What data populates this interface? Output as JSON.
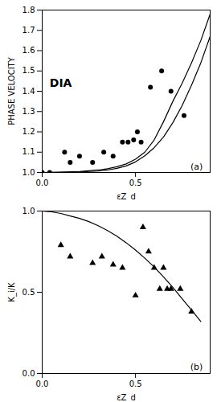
{
  "chart_data": [
    {
      "type": "line",
      "xlabel": "εZ_d",
      "ylabel": "PHASE VELOCITY",
      "xlim": [
        0,
        0.9
      ],
      "ylim": [
        1.0,
        1.8
      ],
      "xticks": [
        {
          "value": 0,
          "label": "0.0"
        },
        0.5
      ],
      "yticks": [
        {
          "value": 1.0,
          "label": "1.0"
        },
        1.1,
        1.2,
        1.3,
        1.4,
        1.5,
        1.6,
        1.7,
        1.8
      ],
      "series": [
        {
          "type": "line",
          "color": "black",
          "x": [
            0.0,
            0.1,
            0.2,
            0.3,
            0.35,
            0.4,
            0.45,
            0.5,
            0.55,
            0.6,
            0.65,
            0.7,
            0.75,
            0.8,
            0.85,
            0.9
          ],
          "values": [
            1.0,
            1.002,
            1.005,
            1.012,
            1.018,
            1.028,
            1.042,
            1.065,
            1.1,
            1.16,
            1.25,
            1.35,
            1.44,
            1.54,
            1.65,
            1.78
          ]
        },
        {
          "type": "line",
          "color": "black",
          "x": [
            0.0,
            0.1,
            0.2,
            0.3,
            0.35,
            0.4,
            0.45,
            0.5,
            0.55,
            0.6,
            0.65,
            0.7,
            0.75,
            0.8,
            0.85,
            0.9
          ],
          "values": [
            1.0,
            1.001,
            1.003,
            1.007,
            1.012,
            1.02,
            1.032,
            1.052,
            1.082,
            1.122,
            1.175,
            1.245,
            1.33,
            1.43,
            1.54,
            1.67
          ]
        },
        {
          "type": "scatter",
          "color": "black",
          "marker": "circle",
          "x": [
            0.0,
            0.04,
            0.12,
            0.15,
            0.2,
            0.27,
            0.33,
            0.38,
            0.43,
            0.46,
            0.49,
            0.51,
            0.53,
            0.58,
            0.64,
            0.69,
            0.76
          ],
          "values": [
            1.0,
            1.0,
            1.1,
            1.05,
            1.08,
            1.05,
            1.1,
            1.08,
            1.15,
            1.15,
            1.16,
            1.2,
            1.15,
            1.42,
            1.5,
            1.4,
            1.28
          ]
        }
      ],
      "annotations": [
        {
          "text": "DIA",
          "x": 0.04,
          "y": 1.46
        },
        {
          "text": "(a)",
          "x": 0.86,
          "y": 1.015
        }
      ]
    },
    {
      "type": "line",
      "xlabel": "εZ_d",
      "ylabel": "K_i/K",
      "xlim": [
        0,
        0.9
      ],
      "ylim": [
        0.0,
        1.0
      ],
      "xticks": [
        {
          "value": 0,
          "label": "0.0"
        },
        0.5
      ],
      "yticks": [
        {
          "value": 0.0,
          "label": "0.0"
        },
        0.5,
        {
          "value": 1.0,
          "label": "1.0"
        }
      ],
      "series": [
        {
          "type": "line",
          "color": "black",
          "x": [
            0.0,
            0.05,
            0.1,
            0.15,
            0.2,
            0.25,
            0.3,
            0.35,
            0.4,
            0.45,
            0.5,
            0.55,
            0.6,
            0.65,
            0.7,
            0.75,
            0.8,
            0.85
          ],
          "values": [
            1.0,
            0.995,
            0.985,
            0.97,
            0.955,
            0.935,
            0.91,
            0.88,
            0.845,
            0.805,
            0.76,
            0.71,
            0.655,
            0.595,
            0.53,
            0.46,
            0.39,
            0.32
          ]
        },
        {
          "type": "scatter",
          "color": "black",
          "marker": "triangle",
          "x": [
            0.1,
            0.15,
            0.27,
            0.32,
            0.38,
            0.43,
            0.5,
            0.54,
            0.57,
            0.6,
            0.63,
            0.65,
            0.67,
            0.69,
            0.74,
            0.8
          ],
          "values": [
            0.79,
            0.72,
            0.68,
            0.72,
            0.67,
            0.65,
            0.48,
            0.9,
            0.75,
            0.65,
            0.52,
            0.65,
            0.52,
            0.52,
            0.52,
            0.38
          ]
        }
      ],
      "annotations": [
        {
          "text": "(b)",
          "x": 0.86,
          "y": 0.02
        }
      ]
    }
  ]
}
